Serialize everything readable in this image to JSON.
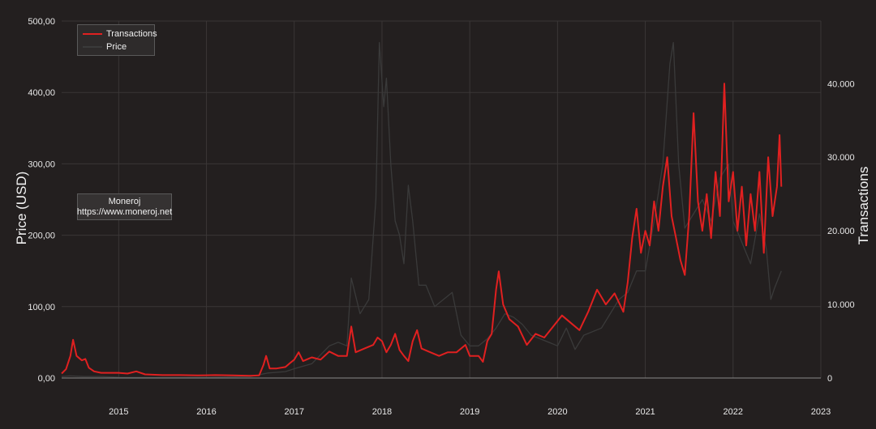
{
  "chart_data": {
    "type": "line",
    "title": "",
    "xlabel": "",
    "ylabel": "Price (USD)",
    "y2label": "Transactions",
    "x_ticks": [
      "2015",
      "2016",
      "2017",
      "2018",
      "2019",
      "2020",
      "2021",
      "2022",
      "2023"
    ],
    "y_ticks": [
      "0,00",
      "100,00",
      "200,00",
      "300,00",
      "400,00",
      "500,00"
    ],
    "y2_ticks": [
      "0",
      "10.000",
      "20.000",
      "30.000",
      "40.000"
    ],
    "ylim": [
      0,
      500
    ],
    "y2lim": [
      0,
      48500
    ],
    "xlim": [
      2014.35,
      2023.0
    ],
    "grid": true,
    "legend_position": "top-left",
    "series": [
      {
        "name": "Transactions",
        "axis": "right",
        "color": "#e02020",
        "points": [
          [
            2014.35,
            600
          ],
          [
            2014.4,
            1200
          ],
          [
            2014.45,
            3000
          ],
          [
            2014.48,
            5200
          ],
          [
            2014.52,
            3000
          ],
          [
            2014.58,
            2400
          ],
          [
            2014.62,
            2600
          ],
          [
            2014.66,
            1400
          ],
          [
            2014.72,
            900
          ],
          [
            2014.8,
            700
          ],
          [
            2014.9,
            700
          ],
          [
            2015.0,
            700
          ],
          [
            2015.1,
            600
          ],
          [
            2015.2,
            900
          ],
          [
            2015.3,
            500
          ],
          [
            2015.5,
            400
          ],
          [
            2015.7,
            400
          ],
          [
            2015.9,
            350
          ],
          [
            2016.1,
            400
          ],
          [
            2016.3,
            350
          ],
          [
            2016.5,
            300
          ],
          [
            2016.6,
            350
          ],
          [
            2016.65,
            1800
          ],
          [
            2016.68,
            3000
          ],
          [
            2016.72,
            1300
          ],
          [
            2016.8,
            1300
          ],
          [
            2016.9,
            1500
          ],
          [
            2016.95,
            2000
          ],
          [
            2017.0,
            2500
          ],
          [
            2017.05,
            3500
          ],
          [
            2017.1,
            2300
          ],
          [
            2017.2,
            2800
          ],
          [
            2017.3,
            2500
          ],
          [
            2017.4,
            3600
          ],
          [
            2017.5,
            3000
          ],
          [
            2017.6,
            3000
          ],
          [
            2017.65,
            7000
          ],
          [
            2017.7,
            3500
          ],
          [
            2017.8,
            4000
          ],
          [
            2017.9,
            4500
          ],
          [
            2017.95,
            5500
          ],
          [
            2018.0,
            5000
          ],
          [
            2018.05,
            3500
          ],
          [
            2018.1,
            4500
          ],
          [
            2018.15,
            6000
          ],
          [
            2018.2,
            3800
          ],
          [
            2018.25,
            3000
          ],
          [
            2018.3,
            2300
          ],
          [
            2018.35,
            5000
          ],
          [
            2018.4,
            6500
          ],
          [
            2018.45,
            4000
          ],
          [
            2018.55,
            3500
          ],
          [
            2018.65,
            3000
          ],
          [
            2018.75,
            3500
          ],
          [
            2018.85,
            3500
          ],
          [
            2018.95,
            4500
          ],
          [
            2019.0,
            3000
          ],
          [
            2019.1,
            3000
          ],
          [
            2019.15,
            2200
          ],
          [
            2019.2,
            5000
          ],
          [
            2019.25,
            6000
          ],
          [
            2019.3,
            12000
          ],
          [
            2019.33,
            14500
          ],
          [
            2019.38,
            10000
          ],
          [
            2019.45,
            8000
          ],
          [
            2019.55,
            7000
          ],
          [
            2019.65,
            4500
          ],
          [
            2019.75,
            6000
          ],
          [
            2019.85,
            5500
          ],
          [
            2019.95,
            7000
          ],
          [
            2020.05,
            8500
          ],
          [
            2020.15,
            7500
          ],
          [
            2020.25,
            6500
          ],
          [
            2020.35,
            9000
          ],
          [
            2020.45,
            12000
          ],
          [
            2020.55,
            10000
          ],
          [
            2020.65,
            11500
          ],
          [
            2020.75,
            9000
          ],
          [
            2020.8,
            13000
          ],
          [
            2020.85,
            19000
          ],
          [
            2020.9,
            23000
          ],
          [
            2020.95,
            17000
          ],
          [
            2021.0,
            20000
          ],
          [
            2021.05,
            18000
          ],
          [
            2021.1,
            24000
          ],
          [
            2021.15,
            20000
          ],
          [
            2021.2,
            26000
          ],
          [
            2021.25,
            30000
          ],
          [
            2021.3,
            22000
          ],
          [
            2021.35,
            19000
          ],
          [
            2021.4,
            16000
          ],
          [
            2021.45,
            14000
          ],
          [
            2021.5,
            22000
          ],
          [
            2021.55,
            36000
          ],
          [
            2021.6,
            24000
          ],
          [
            2021.65,
            20000
          ],
          [
            2021.7,
            25000
          ],
          [
            2021.75,
            19000
          ],
          [
            2021.8,
            28000
          ],
          [
            2021.85,
            22000
          ],
          [
            2021.9,
            40000
          ],
          [
            2021.95,
            24000
          ],
          [
            2022.0,
            28000
          ],
          [
            2022.05,
            20000
          ],
          [
            2022.1,
            26000
          ],
          [
            2022.15,
            18000
          ],
          [
            2022.2,
            25000
          ],
          [
            2022.25,
            20000
          ],
          [
            2022.3,
            28000
          ],
          [
            2022.35,
            17000
          ],
          [
            2022.4,
            30000
          ],
          [
            2022.45,
            22000
          ],
          [
            2022.5,
            26000
          ],
          [
            2022.53,
            33000
          ],
          [
            2022.55,
            26000
          ]
        ]
      },
      {
        "name": "Price",
        "axis": "left",
        "color": "#3a3a3a",
        "points": [
          [
            2014.35,
            2
          ],
          [
            2014.45,
            3
          ],
          [
            2014.6,
            2
          ],
          [
            2014.8,
            2
          ],
          [
            2015.0,
            1
          ],
          [
            2015.5,
            0.8
          ],
          [
            2016.0,
            1
          ],
          [
            2016.5,
            2
          ],
          [
            2016.7,
            7
          ],
          [
            2016.9,
            9
          ],
          [
            2017.0,
            13
          ],
          [
            2017.2,
            20
          ],
          [
            2017.4,
            45
          ],
          [
            2017.5,
            50
          ],
          [
            2017.6,
            45
          ],
          [
            2017.65,
            140
          ],
          [
            2017.75,
            90
          ],
          [
            2017.85,
            110
          ],
          [
            2017.93,
            250
          ],
          [
            2017.97,
            470
          ],
          [
            2018.02,
            380
          ],
          [
            2018.05,
            420
          ],
          [
            2018.1,
            300
          ],
          [
            2018.15,
            220
          ],
          [
            2018.2,
            200
          ],
          [
            2018.25,
            160
          ],
          [
            2018.3,
            270
          ],
          [
            2018.35,
            220
          ],
          [
            2018.42,
            130
          ],
          [
            2018.5,
            130
          ],
          [
            2018.6,
            100
          ],
          [
            2018.7,
            110
          ],
          [
            2018.8,
            120
          ],
          [
            2018.9,
            60
          ],
          [
            2019.0,
            45
          ],
          [
            2019.1,
            45
          ],
          [
            2019.2,
            55
          ],
          [
            2019.3,
            70
          ],
          [
            2019.4,
            90
          ],
          [
            2019.5,
            85
          ],
          [
            2019.6,
            75
          ],
          [
            2019.7,
            60
          ],
          [
            2019.8,
            55
          ],
          [
            2019.9,
            50
          ],
          [
            2020.0,
            45
          ],
          [
            2020.1,
            70
          ],
          [
            2020.2,
            40
          ],
          [
            2020.3,
            60
          ],
          [
            2020.4,
            65
          ],
          [
            2020.5,
            70
          ],
          [
            2020.6,
            90
          ],
          [
            2020.7,
            110
          ],
          [
            2020.8,
            120
          ],
          [
            2020.9,
            150
          ],
          [
            2021.0,
            150
          ],
          [
            2021.1,
            220
          ],
          [
            2021.2,
            300
          ],
          [
            2021.28,
            440
          ],
          [
            2021.32,
            470
          ],
          [
            2021.38,
            300
          ],
          [
            2021.45,
            210
          ],
          [
            2021.55,
            230
          ],
          [
            2021.65,
            250
          ],
          [
            2021.75,
            220
          ],
          [
            2021.85,
            280
          ],
          [
            2021.95,
            300
          ],
          [
            2022.0,
            220
          ],
          [
            2022.1,
            190
          ],
          [
            2022.2,
            160
          ],
          [
            2022.3,
            230
          ],
          [
            2022.38,
            180
          ],
          [
            2022.43,
            110
          ],
          [
            2022.47,
            125
          ],
          [
            2022.55,
            150
          ]
        ]
      }
    ]
  },
  "legend": {
    "items": [
      "Transactions",
      "Price"
    ]
  },
  "credit": {
    "name": "Moneroj",
    "url": "https://www.moneroj.net"
  }
}
